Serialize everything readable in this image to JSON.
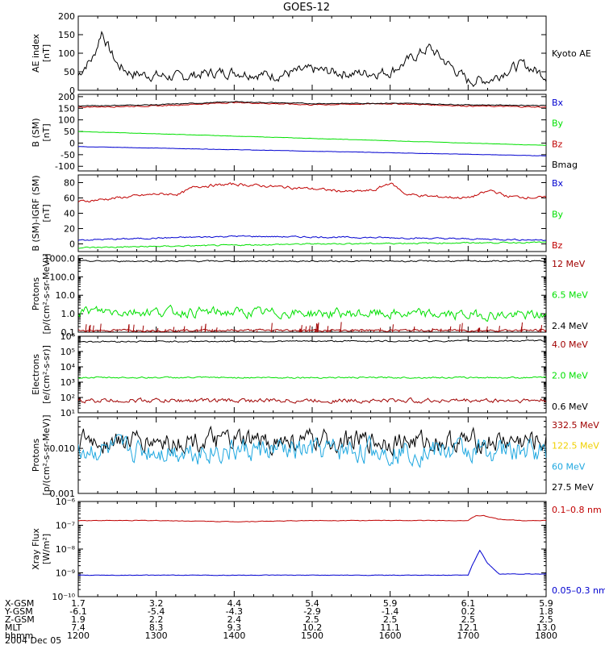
{
  "title": "GOES-12",
  "colors": {
    "black": "#000000",
    "red": "#c00000",
    "dark_red": "#a00000",
    "green": "#00e000",
    "blue": "#0000d0",
    "yellow": "#f0d000",
    "cyan": "#20a8e0"
  },
  "panels": [
    {
      "id": "ae",
      "ylabel": [
        "AE index",
        "[nT]"
      ],
      "scale": "linear",
      "ylim": [
        0,
        200
      ],
      "ticks": [
        "0",
        "50",
        "100",
        "150",
        "200"
      ],
      "tickvals": [
        0,
        50,
        100,
        150,
        200
      ],
      "legend": [
        {
          "label": "Kyoto AE",
          "color": "black"
        }
      ]
    },
    {
      "id": "b",
      "ylabel": [
        "B (SM)",
        "[nT]"
      ],
      "scale": "linear",
      "ylim": [
        -120,
        210
      ],
      "ticks": [
        "-100",
        "-50",
        "0",
        "50",
        "100",
        "150",
        "200"
      ],
      "tickvals": [
        -100,
        -50,
        0,
        50,
        100,
        150,
        200
      ],
      "legend": [
        {
          "label": "Bx",
          "color": "blue"
        },
        {
          "label": "By",
          "color": "green"
        },
        {
          "label": "Bz",
          "color": "red"
        },
        {
          "label": "Bmag",
          "color": "black"
        }
      ]
    },
    {
      "id": "bdiff",
      "ylabel": [
        "B (SM)-IGRF (SM)",
        "[nT]"
      ],
      "scale": "linear",
      "ylim": [
        -10,
        90
      ],
      "ticks": [
        "0",
        "20",
        "40",
        "60",
        "80"
      ],
      "tickvals": [
        0,
        20,
        40,
        60,
        80
      ],
      "legend": [
        {
          "label": "Bx",
          "color": "blue"
        },
        {
          "label": "By",
          "color": "green"
        },
        {
          "label": "Bz",
          "color": "red"
        }
      ]
    },
    {
      "id": "protons_hi",
      "ylabel": [
        "Protons",
        "[p/(cm²-s-sr-MeV)]"
      ],
      "scale": "log",
      "ylim": [
        -1,
        3.15
      ],
      "ticks": [
        "0.1",
        "1.0",
        "10.0",
        "100.0",
        "1000.0"
      ],
      "tickvals": [
        -1,
        0,
        1,
        2,
        3
      ],
      "legend": [
        {
          "label": "12 MeV",
          "color": "dark_red"
        },
        {
          "label": "6.5 MeV",
          "color": "green"
        },
        {
          "label": "2.4 MeV",
          "color": "black"
        }
      ]
    },
    {
      "id": "electrons",
      "ylabel": [
        "Electrons",
        "[e/(cm²-s-sr)]"
      ],
      "scale": "log",
      "ylim": [
        1,
        6
      ],
      "ticks": [
        "10¹",
        "10²",
        "10³",
        "10⁴",
        "10⁵",
        "10⁶"
      ],
      "tickvals": [
        1,
        2,
        3,
        4,
        5,
        6
      ],
      "legend": [
        {
          "label": "4.0 MeV",
          "color": "dark_red"
        },
        {
          "label": "2.0 MeV",
          "color": "green"
        },
        {
          "label": "0.6 MeV",
          "color": "black"
        }
      ]
    },
    {
      "id": "protons_lo",
      "ylabel": [
        "Protons",
        "[p/(cm²-s-sr-MeV)]"
      ],
      "scale": "log",
      "ylim": [
        -3,
        -1.3
      ],
      "ticks": [
        "0.001",
        "0.010"
      ],
      "tickvals": [
        -3,
        -2
      ],
      "legend": [
        {
          "label": "332.5 MeV",
          "color": "dark_red"
        },
        {
          "label": "122.5 MeV",
          "color": "yellow"
        },
        {
          "label": "60 MeV",
          "color": "cyan"
        },
        {
          "label": "27.5 MeV",
          "color": "black"
        }
      ]
    },
    {
      "id": "xray",
      "ylabel": [
        "Xray Flux",
        "[W/m²]"
      ],
      "scale": "log",
      "ylim": [
        -10,
        -6
      ],
      "ticks": [
        "10⁻¹⁰",
        "10⁻⁹",
        "10⁻⁸",
        "10⁻⁷",
        "10⁻⁶"
      ],
      "tickvals": [
        -10,
        -9,
        -8,
        -7,
        -6
      ],
      "legend": [
        {
          "label": "0.1–0.8 nm",
          "color": "red"
        },
        {
          "label": "0.05–0.3 nm",
          "color": "blue"
        }
      ]
    }
  ],
  "footer": {
    "row_labels": [
      "X-GSM",
      "Y-GSM",
      "Z-GSM",
      "MLT",
      "hhmm"
    ],
    "date": "2004 Dec 05",
    "columns": [
      [
        "1.7",
        "-6.1",
        "1.9",
        "7.4",
        "1200"
      ],
      [
        "3.2",
        "-5.4",
        "2.2",
        "8.3",
        "1300"
      ],
      [
        "4.4",
        "-4.3",
        "2.4",
        "9.3",
        "1400"
      ],
      [
        "5.4",
        "-2.9",
        "2.5",
        "10.2",
        "1500"
      ],
      [
        "5.9",
        "-1.4",
        "2.5",
        "11.1",
        "1600"
      ],
      [
        "6.1",
        "0.2",
        "2.5",
        "12.1",
        "1700"
      ],
      [
        "5.9",
        "1.8",
        "2.5",
        "13.0",
        "1800"
      ]
    ]
  },
  "chart_data": {
    "type": "line",
    "title": "GOES-12",
    "x": [
      "1200",
      "1300",
      "1400",
      "1500",
      "1600",
      "1700",
      "1800"
    ],
    "series": [
      {
        "panel": "ae",
        "name": "Kyoto AE",
        "color": "black",
        "x": [
          0,
          0.1,
          0.2,
          0.3,
          0.4,
          0.5,
          0.6,
          0.7,
          1.0,
          1.3,
          1.6,
          2.0,
          2.5,
          3.0,
          3.5,
          4.0,
          4.5,
          5.0,
          5.3,
          5.5,
          5.7,
          6.0
        ],
        "values": [
          40,
          70,
          90,
          160,
          110,
          70,
          55,
          45,
          40,
          35,
          45,
          50,
          40,
          55,
          45,
          50,
          115,
          25,
          30,
          55,
          70,
          40
        ]
      },
      {
        "panel": "b",
        "name": "Bx",
        "color": "blue",
        "x": [
          0,
          6
        ],
        "values": [
          -15,
          -55
        ]
      },
      {
        "panel": "b",
        "name": "By",
        "color": "green",
        "x": [
          0,
          6
        ],
        "values": [
          50,
          -10
        ]
      },
      {
        "panel": "b",
        "name": "Bz",
        "color": "red",
        "x": [
          0,
          1,
          2,
          3,
          4,
          5,
          6
        ],
        "values": [
          155,
          160,
          175,
          165,
          170,
          160,
          155
        ]
      },
      {
        "panel": "b",
        "name": "Bmag",
        "color": "black",
        "x": [
          0,
          1,
          2,
          3,
          4,
          5,
          6
        ],
        "values": [
          160,
          165,
          178,
          170,
          172,
          165,
          162
        ]
      },
      {
        "panel": "bdiff",
        "name": "Bz",
        "color": "red",
        "x": [
          0,
          0.5,
          1,
          1.3,
          1.5,
          2,
          2.5,
          3,
          3.5,
          3.8,
          4,
          4.2,
          4.5,
          5,
          5.3,
          5.5,
          6
        ],
        "values": [
          55,
          60,
          65,
          65,
          75,
          78,
          75,
          72,
          68,
          70,
          80,
          65,
          62,
          60,
          70,
          62,
          60
        ]
      },
      {
        "panel": "bdiff",
        "name": "Bx",
        "color": "blue",
        "x": [
          0,
          2,
          4,
          6
        ],
        "values": [
          5,
          10,
          8,
          5
        ]
      },
      {
        "panel": "bdiff",
        "name": "By",
        "color": "green",
        "x": [
          0,
          3,
          6
        ],
        "values": [
          -5,
          0,
          2
        ]
      },
      {
        "panel": "protons_hi",
        "name": "2.4 MeV",
        "color": "black",
        "x": [
          0,
          6
        ],
        "values": [
          2.85,
          2.85
        ]
      },
      {
        "panel": "protons_hi",
        "name": "6.5 MeV",
        "color": "green",
        "x": [
          0,
          6
        ],
        "values": [
          0.15,
          -0.1
        ]
      },
      {
        "panel": "protons_hi",
        "name": "12 MeV",
        "color": "dark_red",
        "x": [
          0,
          6
        ],
        "values": [
          -0.9,
          -0.9
        ]
      },
      {
        "panel": "electrons",
        "name": "0.6 MeV",
        "color": "black",
        "x": [
          0,
          6
        ],
        "values": [
          5.65,
          5.7
        ]
      },
      {
        "panel": "electrons",
        "name": "2.0 MeV",
        "color": "green",
        "x": [
          0,
          6
        ],
        "values": [
          3.3,
          3.3
        ]
      },
      {
        "panel": "electrons",
        "name": "4.0 MeV",
        "color": "dark_red",
        "x": [
          0,
          6
        ],
        "values": [
          1.8,
          1.8
        ]
      },
      {
        "panel": "protons_lo",
        "name": "27.5 MeV",
        "color": "black",
        "x": [
          0,
          6
        ],
        "values": [
          -1.85,
          -1.85
        ]
      },
      {
        "panel": "protons_lo",
        "name": "60 MeV",
        "color": "cyan",
        "x": [
          0,
          6
        ],
        "values": [
          -2.05,
          -2.05
        ]
      },
      {
        "panel": "xray",
        "name": "0.1–0.8 nm",
        "color": "red",
        "x": [
          0,
          1,
          2,
          3,
          4,
          5,
          5.1,
          5.2,
          5.4,
          5.7,
          6
        ],
        "values": [
          -6.8,
          -6.8,
          -6.85,
          -6.8,
          -6.8,
          -6.8,
          -6.6,
          -6.6,
          -6.75,
          -6.8,
          -6.8
        ]
      },
      {
        "panel": "xray",
        "name": "0.05–0.3 nm",
        "color": "blue",
        "x": [
          0,
          1,
          2,
          3,
          4,
          5,
          5.05,
          5.15,
          5.25,
          5.4,
          6
        ],
        "values": [
          -9.1,
          -9.1,
          -9.1,
          -9.1,
          -9.1,
          -9.1,
          -8.7,
          -8.05,
          -8.6,
          -9.05,
          -9.05
        ]
      }
    ]
  }
}
